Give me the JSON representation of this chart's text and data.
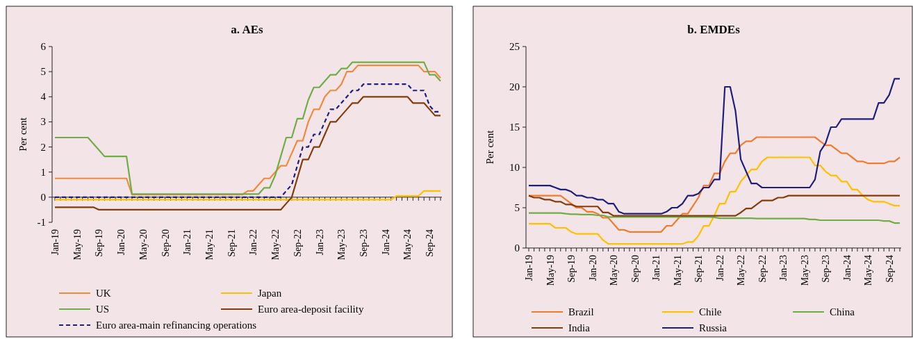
{
  "chart_data": [
    {
      "type": "line",
      "title": "a. AEs",
      "ylabel": "Per cent",
      "ylim": [
        -1,
        6
      ],
      "yticks": [
        -1,
        0,
        1,
        2,
        3,
        4,
        5,
        6
      ],
      "legend": "bottom",
      "categories": [
        "Jan-19",
        null,
        null,
        null,
        "May-19",
        null,
        null,
        null,
        "Sep-19",
        null,
        null,
        null,
        "Jan-20",
        null,
        null,
        null,
        "May-20",
        null,
        null,
        null,
        "Sep-20",
        null,
        null,
        null,
        "Jan-21",
        null,
        null,
        null,
        "May-21",
        null,
        null,
        null,
        "Sep-21",
        null,
        null,
        null,
        "Jan-22",
        null,
        null,
        null,
        "May-22",
        null,
        null,
        null,
        "Sep-22",
        null,
        null,
        null,
        "Jan-23",
        null,
        null,
        null,
        "May-23",
        null,
        null,
        null,
        "Sep-23",
        null,
        null,
        null,
        "Jan-24",
        null,
        null,
        null,
        "May-24",
        null,
        null,
        null,
        "Sep-24",
        null,
        null
      ],
      "series": [
        {
          "name": "UK",
          "color": "#f08a3c",
          "line_style": "solid",
          "values": [
            0.75,
            0.75,
            0.75,
            0.75,
            0.75,
            0.75,
            0.75,
            0.75,
            0.75,
            0.75,
            0.75,
            0.75,
            0.75,
            0.75,
            0.1,
            0.1,
            0.1,
            0.1,
            0.1,
            0.1,
            0.1,
            0.1,
            0.1,
            0.1,
            0.1,
            0.1,
            0.1,
            0.1,
            0.1,
            0.1,
            0.1,
            0.1,
            0.1,
            0.1,
            0.1,
            0.25,
            0.25,
            0.5,
            0.75,
            0.75,
            1.0,
            1.25,
            1.25,
            1.75,
            2.25,
            2.25,
            3.0,
            3.5,
            3.5,
            4.0,
            4.25,
            4.25,
            4.5,
            5.0,
            5.0,
            5.25,
            5.25,
            5.25,
            5.25,
            5.25,
            5.25,
            5.25,
            5.25,
            5.25,
            5.25,
            5.25,
            5.25,
            5.0,
            5.0,
            5.0,
            4.75
          ]
        },
        {
          "name": "Japan",
          "color": "#ffc000",
          "line_style": "solid",
          "values": [
            -0.1,
            -0.1,
            -0.1,
            -0.1,
            -0.1,
            -0.1,
            -0.1,
            -0.1,
            -0.1,
            -0.1,
            -0.1,
            -0.1,
            -0.1,
            -0.1,
            -0.1,
            -0.1,
            -0.1,
            -0.1,
            -0.1,
            -0.1,
            -0.1,
            -0.1,
            -0.1,
            -0.1,
            -0.1,
            -0.1,
            -0.1,
            -0.1,
            -0.1,
            -0.1,
            -0.1,
            -0.1,
            -0.1,
            -0.1,
            -0.1,
            -0.1,
            -0.1,
            -0.1,
            -0.1,
            -0.1,
            -0.1,
            -0.1,
            -0.1,
            -0.1,
            -0.1,
            -0.1,
            -0.1,
            -0.1,
            -0.1,
            -0.1,
            -0.1,
            -0.1,
            -0.1,
            -0.1,
            -0.1,
            -0.1,
            -0.1,
            -0.1,
            -0.1,
            -0.1,
            -0.1,
            -0.1,
            0.05,
            0.05,
            0.05,
            0.05,
            0.05,
            0.25,
            0.25,
            0.25,
            0.25
          ]
        },
        {
          "name": "US",
          "color": "#70ad47",
          "line_style": "solid",
          "values": [
            2.375,
            2.375,
            2.375,
            2.375,
            2.375,
            2.375,
            2.375,
            2.125,
            1.875,
            1.625,
            1.625,
            1.625,
            1.625,
            1.625,
            0.125,
            0.125,
            0.125,
            0.125,
            0.125,
            0.125,
            0.125,
            0.125,
            0.125,
            0.125,
            0.125,
            0.125,
            0.125,
            0.125,
            0.125,
            0.125,
            0.125,
            0.125,
            0.125,
            0.125,
            0.125,
            0.125,
            0.125,
            0.125,
            0.375,
            0.375,
            0.875,
            1.625,
            2.375,
            2.375,
            3.125,
            3.125,
            3.875,
            4.375,
            4.375,
            4.625,
            4.875,
            4.875,
            5.125,
            5.125,
            5.375,
            5.375,
            5.375,
            5.375,
            5.375,
            5.375,
            5.375,
            5.375,
            5.375,
            5.375,
            5.375,
            5.375,
            5.375,
            5.375,
            4.875,
            4.875,
            4.625
          ]
        },
        {
          "name": "Euro area-deposit facility",
          "color": "#843c0c",
          "line_style": "solid",
          "values": [
            -0.4,
            -0.4,
            -0.4,
            -0.4,
            -0.4,
            -0.4,
            -0.4,
            -0.4,
            -0.5,
            -0.5,
            -0.5,
            -0.5,
            -0.5,
            -0.5,
            -0.5,
            -0.5,
            -0.5,
            -0.5,
            -0.5,
            -0.5,
            -0.5,
            -0.5,
            -0.5,
            -0.5,
            -0.5,
            -0.5,
            -0.5,
            -0.5,
            -0.5,
            -0.5,
            -0.5,
            -0.5,
            -0.5,
            -0.5,
            -0.5,
            -0.5,
            -0.5,
            -0.5,
            -0.5,
            -0.5,
            -0.5,
            -0.5,
            -0.25,
            0,
            0.75,
            1.5,
            1.5,
            2.0,
            2.0,
            2.5,
            3.0,
            3.0,
            3.25,
            3.5,
            3.75,
            3.75,
            4.0,
            4.0,
            4.0,
            4.0,
            4.0,
            4.0,
            4.0,
            4.0,
            4.0,
            3.75,
            3.75,
            3.75,
            3.5,
            3.25,
            3.25
          ]
        },
        {
          "name": "Euro area-main refinancing operations",
          "color": "#1f1f7a",
          "line_style": "dashed",
          "values": [
            0,
            0,
            0,
            0,
            0,
            0,
            0,
            0,
            0,
            0,
            0,
            0,
            0,
            0,
            0,
            0,
            0,
            0,
            0,
            0,
            0,
            0,
            0,
            0,
            0,
            0,
            0,
            0,
            0,
            0,
            0,
            0,
            0,
            0,
            0,
            0,
            0,
            0,
            0,
            0,
            0,
            0,
            0.25,
            0.5,
            1.25,
            2.0,
            2.0,
            2.5,
            2.5,
            3.0,
            3.5,
            3.5,
            3.75,
            4.0,
            4.25,
            4.25,
            4.5,
            4.5,
            4.5,
            4.5,
            4.5,
            4.5,
            4.5,
            4.5,
            4.5,
            4.25,
            4.25,
            4.25,
            3.65,
            3.4,
            3.4
          ]
        }
      ]
    },
    {
      "type": "line",
      "title": "b. EMDEs",
      "ylabel": "Per cent",
      "ylim": [
        0,
        25
      ],
      "yticks": [
        0,
        5,
        10,
        15,
        20,
        25
      ],
      "legend": "bottom",
      "categories": [
        "Jan-19",
        null,
        null,
        null,
        "May-19",
        null,
        null,
        null,
        "Sep-19",
        null,
        null,
        null,
        "Jan-20",
        null,
        null,
        null,
        "May-20",
        null,
        null,
        null,
        "Sep-20",
        null,
        null,
        null,
        "Jan-21",
        null,
        null,
        null,
        "May-21",
        null,
        null,
        null,
        "Sep-21",
        null,
        null,
        null,
        "Jan-22",
        null,
        null,
        null,
        "May-22",
        null,
        null,
        null,
        "Sep-22",
        null,
        null,
        null,
        "Jan-23",
        null,
        null,
        null,
        "May-23",
        null,
        null,
        null,
        "Sep-23",
        null,
        null,
        null,
        "Jan-24",
        null,
        null,
        null,
        "May-24",
        null,
        null,
        null,
        "Sep-24",
        null,
        null
      ],
      "series": [
        {
          "name": "Brazil",
          "color": "#ed7d31",
          "line_style": "solid",
          "values": [
            6.5,
            6.5,
            6.5,
            6.5,
            6.5,
            6.5,
            6.5,
            6.0,
            5.5,
            5.0,
            5.0,
            4.5,
            4.5,
            4.25,
            3.75,
            3.75,
            3.0,
            2.25,
            2.25,
            2.0,
            2.0,
            2.0,
            2.0,
            2.0,
            2.0,
            2.0,
            2.75,
            2.75,
            3.5,
            4.25,
            4.25,
            5.25,
            6.25,
            7.75,
            7.75,
            9.25,
            9.25,
            10.75,
            11.75,
            11.75,
            12.75,
            13.25,
            13.25,
            13.75,
            13.75,
            13.75,
            13.75,
            13.75,
            13.75,
            13.75,
            13.75,
            13.75,
            13.75,
            13.75,
            13.75,
            13.25,
            12.75,
            12.75,
            12.25,
            11.75,
            11.75,
            11.25,
            10.75,
            10.75,
            10.5,
            10.5,
            10.5,
            10.5,
            10.75,
            10.75,
            11.25
          ]
        },
        {
          "name": "Chile",
          "color": "#ffc000",
          "line_style": "solid",
          "values": [
            3.0,
            3.0,
            3.0,
            3.0,
            3.0,
            2.5,
            2.5,
            2.5,
            2.0,
            1.75,
            1.75,
            1.75,
            1.75,
            1.75,
            1.0,
            0.5,
            0.5,
            0.5,
            0.5,
            0.5,
            0.5,
            0.5,
            0.5,
            0.5,
            0.5,
            0.5,
            0.5,
            0.5,
            0.5,
            0.5,
            0.75,
            0.75,
            1.5,
            2.75,
            2.75,
            4.0,
            5.5,
            5.5,
            7.0,
            7.0,
            8.25,
            9.0,
            9.75,
            9.75,
            10.75,
            11.25,
            11.25,
            11.25,
            11.25,
            11.25,
            11.25,
            11.25,
            11.25,
            11.25,
            10.25,
            10.25,
            9.5,
            9.0,
            9.0,
            8.25,
            8.25,
            7.25,
            7.25,
            6.5,
            6.0,
            5.75,
            5.75,
            5.75,
            5.5,
            5.25,
            5.25
          ]
        },
        {
          "name": "China",
          "color": "#70ad47",
          "line_style": "solid",
          "values": [
            4.35,
            4.35,
            4.35,
            4.35,
            4.35,
            4.35,
            4.35,
            4.25,
            4.2,
            4.2,
            4.15,
            4.15,
            4.15,
            4.05,
            4.05,
            3.85,
            3.85,
            3.85,
            3.85,
            3.85,
            3.85,
            3.85,
            3.85,
            3.85,
            3.85,
            3.85,
            3.85,
            3.85,
            3.85,
            3.85,
            3.85,
            3.85,
            3.85,
            3.85,
            3.85,
            3.8,
            3.7,
            3.7,
            3.7,
            3.7,
            3.7,
            3.7,
            3.7,
            3.65,
            3.65,
            3.65,
            3.65,
            3.65,
            3.65,
            3.65,
            3.65,
            3.65,
            3.65,
            3.55,
            3.55,
            3.45,
            3.45,
            3.45,
            3.45,
            3.45,
            3.45,
            3.45,
            3.45,
            3.45,
            3.45,
            3.45,
            3.45,
            3.35,
            3.35,
            3.1,
            3.1
          ]
        },
        {
          "name": "India",
          "color": "#843c0c",
          "line_style": "solid",
          "values": [
            6.5,
            6.25,
            6.25,
            6.0,
            6.0,
            5.75,
            5.75,
            5.4,
            5.4,
            5.15,
            5.15,
            5.15,
            5.15,
            5.15,
            4.4,
            4.4,
            4.0,
            4.0,
            4.0,
            4.0,
            4.0,
            4.0,
            4.0,
            4.0,
            4.0,
            4.0,
            4.0,
            4.0,
            4.0,
            4.0,
            4.0,
            4.0,
            4.0,
            4.0,
            4.0,
            4.0,
            4.0,
            4.0,
            4.0,
            4.0,
            4.4,
            4.9,
            4.9,
            5.4,
            5.9,
            5.9,
            5.9,
            6.25,
            6.25,
            6.5,
            6.5,
            6.5,
            6.5,
            6.5,
            6.5,
            6.5,
            6.5,
            6.5,
            6.5,
            6.5,
            6.5,
            6.5,
            6.5,
            6.5,
            6.5,
            6.5,
            6.5,
            6.5,
            6.5,
            6.5,
            6.5
          ]
        },
        {
          "name": "Russia",
          "color": "#1f1f7a",
          "line_style": "solid",
          "values": [
            7.75,
            7.75,
            7.75,
            7.75,
            7.75,
            7.5,
            7.25,
            7.25,
            7.0,
            6.5,
            6.5,
            6.25,
            6.25,
            6.0,
            6.0,
            5.5,
            5.5,
            4.5,
            4.25,
            4.25,
            4.25,
            4.25,
            4.25,
            4.25,
            4.25,
            4.25,
            4.5,
            5.0,
            5.0,
            5.5,
            6.5,
            6.5,
            6.75,
            7.5,
            7.5,
            8.5,
            8.5,
            20,
            20,
            17,
            11,
            9.5,
            8,
            8,
            7.5,
            7.5,
            7.5,
            7.5,
            7.5,
            7.5,
            7.5,
            7.5,
            7.5,
            7.5,
            8.5,
            12,
            13,
            15,
            15,
            16,
            16,
            16,
            16,
            16,
            16,
            16,
            18,
            18,
            19,
            21,
            21
          ]
        }
      ]
    }
  ]
}
